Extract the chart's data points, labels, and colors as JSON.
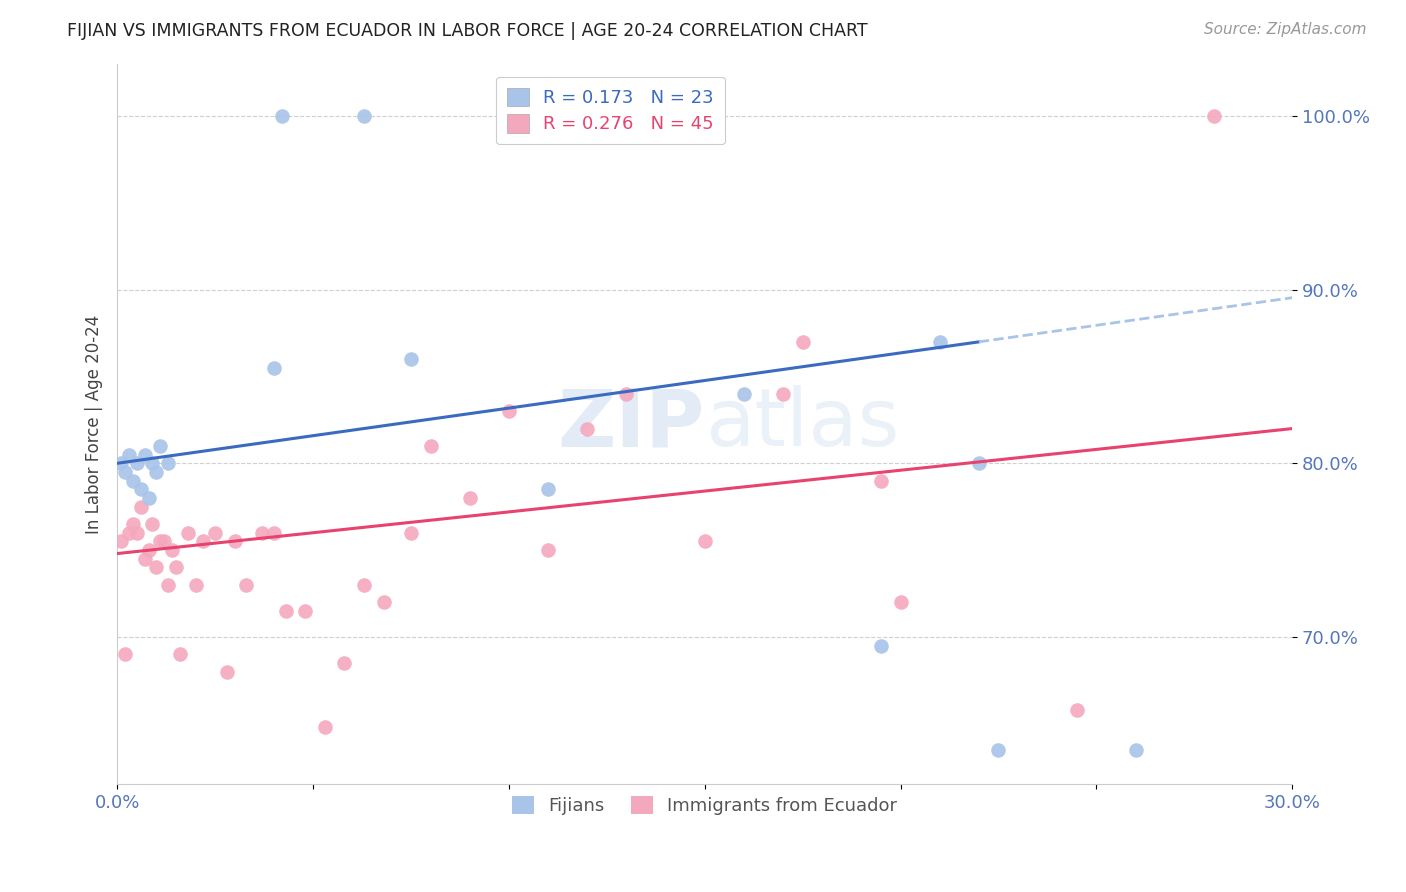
{
  "title": "FIJIAN VS IMMIGRANTS FROM ECUADOR IN LABOR FORCE | AGE 20-24 CORRELATION CHART",
  "source": "Source: ZipAtlas.com",
  "ylabel": "In Labor Force | Age 20-24",
  "xlim": [
    0.0,
    0.3
  ],
  "ylim": [
    0.615,
    1.03
  ],
  "yticks": [
    0.7,
    0.8,
    0.9,
    1.0
  ],
  "ytick_labels": [
    "70.0%",
    "80.0%",
    "90.0%",
    "100.0%"
  ],
  "fijian_R": 0.173,
  "fijian_N": 23,
  "ecuador_R": 0.276,
  "ecuador_N": 45,
  "blue_color": "#a8c4e8",
  "pink_color": "#f4a8be",
  "blue_line_color": "#3a6bbf",
  "pink_line_color": "#e8436e",
  "blue_dashed_color": "#a8c4e8",
  "watermark": "ZIPatlas",
  "fijian_x": [
    0.001,
    0.002,
    0.003,
    0.004,
    0.005,
    0.006,
    0.007,
    0.008,
    0.009,
    0.01,
    0.011,
    0.013,
    0.04,
    0.042,
    0.063,
    0.075,
    0.11,
    0.16,
    0.195,
    0.21,
    0.22,
    0.225,
    0.26
  ],
  "fijian_y": [
    0.8,
    0.795,
    0.805,
    0.79,
    0.8,
    0.785,
    0.805,
    0.78,
    0.8,
    0.795,
    0.81,
    0.8,
    0.855,
    1.0,
    1.0,
    0.86,
    0.785,
    0.84,
    0.695,
    0.87,
    0.8,
    0.635,
    0.635
  ],
  "ecuador_x": [
    0.001,
    0.002,
    0.003,
    0.004,
    0.005,
    0.006,
    0.007,
    0.008,
    0.009,
    0.01,
    0.011,
    0.012,
    0.013,
    0.014,
    0.015,
    0.016,
    0.018,
    0.02,
    0.022,
    0.025,
    0.028,
    0.03,
    0.033,
    0.037,
    0.04,
    0.043,
    0.048,
    0.053,
    0.058,
    0.063,
    0.068,
    0.075,
    0.08,
    0.09,
    0.1,
    0.11,
    0.12,
    0.13,
    0.15,
    0.17,
    0.175,
    0.195,
    0.2,
    0.245,
    0.28
  ],
  "ecuador_y": [
    0.755,
    0.69,
    0.76,
    0.765,
    0.76,
    0.775,
    0.745,
    0.75,
    0.765,
    0.74,
    0.755,
    0.755,
    0.73,
    0.75,
    0.74,
    0.69,
    0.76,
    0.73,
    0.755,
    0.76,
    0.68,
    0.755,
    0.73,
    0.76,
    0.76,
    0.715,
    0.715,
    0.648,
    0.685,
    0.73,
    0.72,
    0.76,
    0.81,
    0.78,
    0.83,
    0.75,
    0.82,
    0.84,
    0.755,
    0.84,
    0.87,
    0.79,
    0.72,
    0.658,
    1.0
  ],
  "title_color": "#222222",
  "tick_color": "#5577bb",
  "grid_color": "#d0d0d0",
  "background_color": "#ffffff"
}
